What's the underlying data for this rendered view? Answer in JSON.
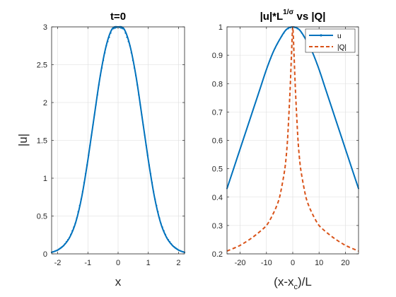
{
  "chart_data": [
    {
      "type": "line",
      "title": "t=0",
      "xlabel": "x",
      "ylabel": "|u|",
      "xlim": [
        -2.2,
        2.2
      ],
      "ylim": [
        0,
        3
      ],
      "xticks": [
        -2,
        -1,
        0,
        1,
        2
      ],
      "yticks": [
        0,
        0.5,
        1,
        1.5,
        2,
        2.5,
        3
      ],
      "xtick_labels": [
        "-2",
        "-1",
        "0",
        "1",
        "2"
      ],
      "ytick_labels": [
        "0",
        "0.5",
        "1",
        "1.5",
        "2",
        "2.5",
        "3"
      ],
      "grid": true,
      "series": [
        {
          "color": "#0072BD",
          "marker": "dot",
          "x": [
            -2.2,
            -2.0,
            -1.8,
            -1.6,
            -1.4,
            -1.2,
            -1.0,
            -0.8,
            -0.6,
            -0.4,
            -0.2,
            0.0,
            0.2,
            0.4,
            0.6,
            0.8,
            1.0,
            1.2,
            1.4,
            1.6,
            1.8,
            2.0,
            2.2
          ],
          "values": [
            0.02,
            0.05,
            0.11,
            0.22,
            0.42,
            0.76,
            1.24,
            1.79,
            2.33,
            2.74,
            2.97,
            3.0,
            2.97,
            2.74,
            2.33,
            1.79,
            1.24,
            0.76,
            0.42,
            0.22,
            0.11,
            0.05,
            0.02
          ]
        }
      ]
    },
    {
      "type": "line",
      "title": "|u|*L",
      "title_sup": "1/σ",
      "title_tail": " vs |Q|",
      "xlabel": "(x-x",
      "xlabel_sub": "c",
      "xlabel_tail": ")/L",
      "ylabel": "",
      "xlim": [
        -25,
        25
      ],
      "ylim": [
        0.2,
        1
      ],
      "xticks": [
        -20,
        -10,
        0,
        10,
        20
      ],
      "yticks": [
        0.2,
        0.3,
        0.4,
        0.5,
        0.6,
        0.7,
        0.8,
        0.9,
        1
      ],
      "xtick_labels": [
        "-20",
        "-10",
        "0",
        "10",
        "20"
      ],
      "ytick_labels": [
        "0.2",
        "0.3",
        "0.4",
        "0.5",
        "0.6",
        "0.7",
        "0.8",
        "0.9",
        "1"
      ],
      "grid": true,
      "legend_position": "top-right",
      "series": [
        {
          "name": "u",
          "color": "#0072BD",
          "style": "solid",
          "x": [
            -25,
            -22.5,
            -20,
            -17.5,
            -15,
            -12.5,
            -10,
            -7.5,
            -5,
            -2.5,
            0,
            2.5,
            5,
            7.5,
            10,
            12.5,
            15,
            17.5,
            20,
            22.5,
            25
          ],
          "values": [
            0.43,
            0.5,
            0.57,
            0.64,
            0.71,
            0.78,
            0.85,
            0.91,
            0.955,
            0.99,
            1.0,
            0.99,
            0.955,
            0.91,
            0.85,
            0.78,
            0.71,
            0.64,
            0.57,
            0.5,
            0.43
          ]
        },
        {
          "name": "|Q|",
          "color": "#D95319",
          "style": "dashed",
          "x": [
            -25,
            -20,
            -15,
            -10,
            -7,
            -5,
            -3,
            -2,
            -1,
            -0.5,
            0,
            0.5,
            1,
            2,
            3,
            5,
            7,
            10,
            15,
            20,
            25
          ],
          "values": [
            0.21,
            0.23,
            0.26,
            0.3,
            0.35,
            0.4,
            0.5,
            0.6,
            0.78,
            0.9,
            1.0,
            0.9,
            0.78,
            0.6,
            0.5,
            0.4,
            0.35,
            0.3,
            0.26,
            0.23,
            0.21
          ]
        }
      ]
    }
  ]
}
